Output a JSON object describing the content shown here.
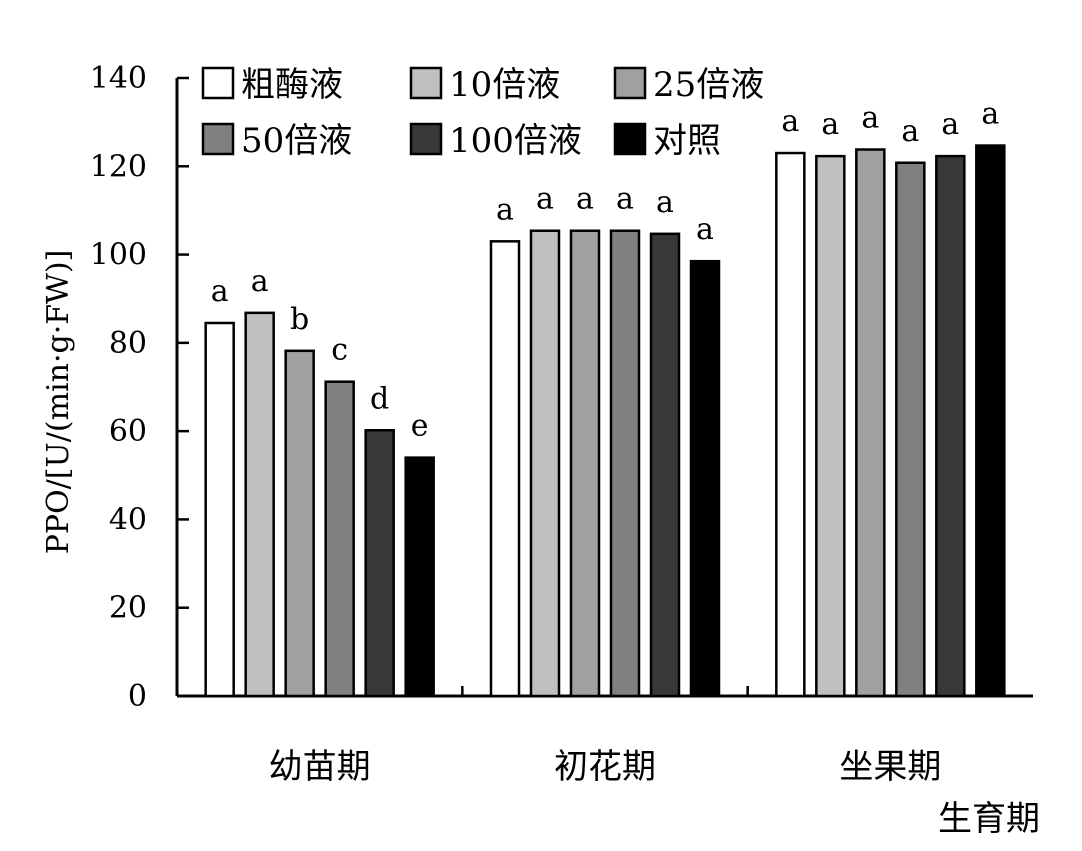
{
  "chart_data": {
    "type": "bar",
    "title": "",
    "ylabel": "PPO/[U/(min·g·FW)]",
    "xlabel": "生育期",
    "ylim": [
      0,
      140
    ],
    "yticks": [
      0,
      20,
      40,
      60,
      80,
      100,
      120,
      140
    ],
    "grid": false,
    "legend_position": "top-left",
    "categories": [
      "幼苗期",
      "初花期",
      "坐果期"
    ],
    "series": [
      {
        "name": "粗酶液",
        "color": "#ffffff",
        "values": [
          84.5,
          103.0,
          123.0
        ],
        "labels": [
          "a",
          "a",
          "a"
        ]
      },
      {
        "name": "10倍液",
        "color": "#c0c0c0",
        "values": [
          86.8,
          105.4,
          122.3
        ],
        "labels": [
          "a",
          "a",
          "a"
        ]
      },
      {
        "name": "25倍液",
        "color": "#a0a0a0",
        "values": [
          78.2,
          105.4,
          123.8
        ],
        "labels": [
          "b",
          "a",
          "a"
        ]
      },
      {
        "name": "50倍液",
        "color": "#808080",
        "values": [
          71.2,
          105.4,
          120.8
        ],
        "labels": [
          "c",
          "a",
          "a"
        ]
      },
      {
        "name": "100倍液",
        "color": "#383838",
        "values": [
          60.2,
          104.7,
          122.3
        ],
        "labels": [
          "d",
          "a",
          "a"
        ]
      },
      {
        "name": "对照",
        "color": "#000000",
        "values": [
          54.0,
          98.5,
          124.7
        ],
        "labels": [
          "e",
          "a",
          "a"
        ]
      }
    ]
  }
}
